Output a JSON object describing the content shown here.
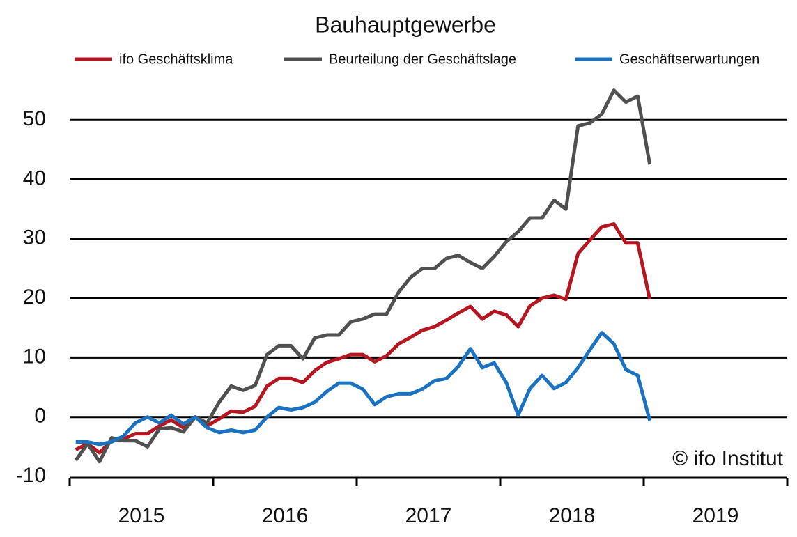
{
  "chart_data": {
    "type": "line",
    "title": "Bauhauptgewerbe",
    "annotation": "© ifo Institut",
    "x": [
      2015.042,
      2015.125,
      2015.208,
      2015.292,
      2015.375,
      2015.458,
      2015.542,
      2015.625,
      2015.708,
      2015.792,
      2015.875,
      2015.958,
      2016.042,
      2016.125,
      2016.208,
      2016.292,
      2016.375,
      2016.458,
      2016.542,
      2016.625,
      2016.708,
      2016.792,
      2016.875,
      2016.958,
      2017.042,
      2017.125,
      2017.208,
      2017.292,
      2017.375,
      2017.458,
      2017.542,
      2017.625,
      2017.708,
      2017.792,
      2017.875,
      2017.958,
      2018.042,
      2018.125,
      2018.208,
      2018.292,
      2018.375,
      2018.458,
      2018.542,
      2018.625,
      2018.708,
      2018.792,
      2018.875,
      2018.958,
      2019.042
    ],
    "series": [
      {
        "name": "ifo Geschäftsklima",
        "color": "#b5161f",
        "values": [
          -5.5,
          -4.5,
          -6,
          -4,
          -3.7,
          -2.8,
          -2.8,
          -1.5,
          -0.5,
          -1.8,
          0,
          -1.5,
          -0.3,
          1,
          0.8,
          1.8,
          5.2,
          6.5,
          6.5,
          5.8,
          7.8,
          9.2,
          9.8,
          10.5,
          10.5,
          9.3,
          10.3,
          12.3,
          13.4,
          14.6,
          15.2,
          16.3,
          17.5,
          18.6,
          16.5,
          17.8,
          17.2,
          15.2,
          18.7,
          20,
          20.5,
          19.8,
          27.5,
          29.8,
          32,
          32.5,
          29.3,
          29.3,
          19.8
        ]
      },
      {
        "name": "Beurteilung der Geschäftslage",
        "color": "#505050",
        "values": [
          -7.3,
          -4.5,
          -7.5,
          -3.5,
          -4,
          -4,
          -5,
          -2,
          -1.8,
          -2.5,
          0,
          -1,
          2.5,
          5.2,
          4.5,
          5.3,
          10.5,
          12,
          12,
          9.8,
          13.3,
          13.8,
          13.8,
          16,
          16.5,
          17.3,
          17.3,
          21,
          23.5,
          25,
          25,
          26.7,
          27.2,
          26,
          25,
          27,
          29.5,
          31.2,
          33.5,
          33.5,
          36.5,
          35,
          49,
          49.5,
          51,
          55,
          53,
          54,
          42.5
        ]
      },
      {
        "name": "Geschäftserwartungen",
        "color": "#1a72c0",
        "values": [
          -4.2,
          -4.2,
          -4.6,
          -4.2,
          -3.2,
          -1,
          0,
          -1,
          0.3,
          -1.2,
          0,
          -1.8,
          -2.6,
          -2.2,
          -2.6,
          -2.2,
          0,
          1.6,
          1.2,
          1.6,
          2.5,
          4.3,
          5.7,
          5.7,
          4.7,
          2.1,
          3.4,
          3.9,
          3.9,
          4.7,
          6.1,
          6.5,
          8.5,
          11.5,
          8.3,
          9.1,
          5.8,
          0.3,
          4.8,
          7,
          4.8,
          5.8,
          8.3,
          11.3,
          14.2,
          12.3,
          8,
          7,
          -0.6
        ]
      }
    ],
    "xlim": [
      2015,
      2020
    ],
    "xticks": [
      2015,
      2016,
      2017,
      2018,
      2019,
      2020
    ],
    "x_labels": [
      "2015",
      "2016",
      "2017",
      "2018",
      "2019"
    ],
    "ylim": [
      -10,
      58
    ],
    "yticks": [
      -10,
      0,
      10,
      20,
      30,
      40,
      50
    ],
    "grid": true
  }
}
